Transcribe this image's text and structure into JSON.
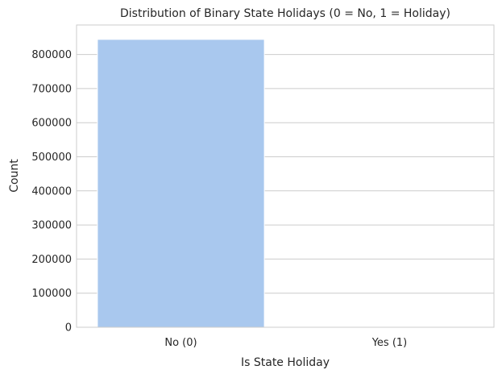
{
  "chart_data": {
    "type": "bar",
    "title": "Distribution of Binary State Holidays (0 = No, 1 = Holiday)",
    "xlabel": "Is State Holiday",
    "ylabel": "Count",
    "categories": [
      "No (0)",
      "Yes (1)"
    ],
    "values": [
      844338,
      0
    ],
    "ylim": [
      0,
      886555
    ],
    "yticks": [
      0,
      100000,
      200000,
      300000,
      400000,
      500000,
      600000,
      700000,
      800000
    ],
    "grid": true,
    "legend": "none",
    "bar_color": "#a9c8ee"
  }
}
